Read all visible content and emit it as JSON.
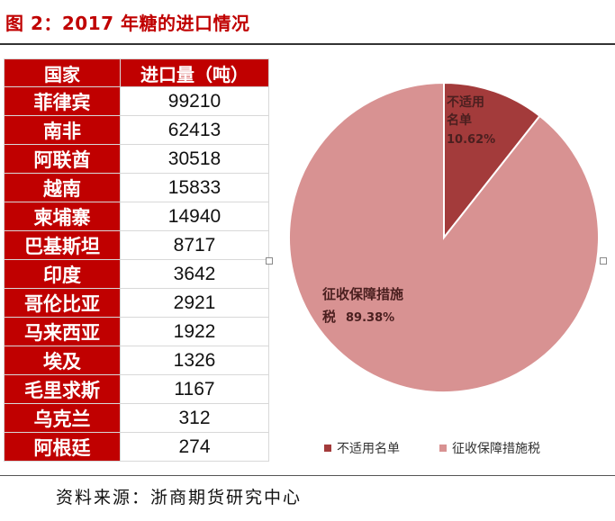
{
  "title": "图 2：2017 年糖的进口情况",
  "source": "资料来源：浙商期货研究中心",
  "table": {
    "headers": [
      "国家",
      "进口量（吨）"
    ],
    "rows": [
      {
        "country": "菲律宾",
        "value": "99210"
      },
      {
        "country": "南非",
        "value": "62413"
      },
      {
        "country": "阿联酋",
        "value": "30518"
      },
      {
        "country": "越南",
        "value": "15833"
      },
      {
        "country": "柬埔寨",
        "value": "14940"
      },
      {
        "country": "巴基斯坦",
        "value": "8717"
      },
      {
        "country": "印度",
        "value": "3642"
      },
      {
        "country": "哥伦比亚",
        "value": "2921"
      },
      {
        "country": "马来西亚",
        "value": "1922"
      },
      {
        "country": "埃及",
        "value": "1326"
      },
      {
        "country": "毛里求斯",
        "value": "1167"
      },
      {
        "country": "乌克兰",
        "value": "312"
      },
      {
        "country": "阿根廷",
        "value": "274"
      }
    ]
  },
  "chart_data": {
    "type": "pie",
    "slices": [
      {
        "label": "不适用名单",
        "label_lines": [
          "不适用",
          "名单"
        ],
        "percent_text": "10.62%",
        "value": 10.62,
        "color": "#a33b3b"
      },
      {
        "label": "征收保障措施税",
        "label_lines": [
          "征收保障措施",
          "税"
        ],
        "percent_text": "89.38%",
        "value": 89.38,
        "color": "#d89292"
      }
    ],
    "legend": [
      "不适用名单",
      "征收保障措施税"
    ],
    "legend_position": "bottom"
  }
}
